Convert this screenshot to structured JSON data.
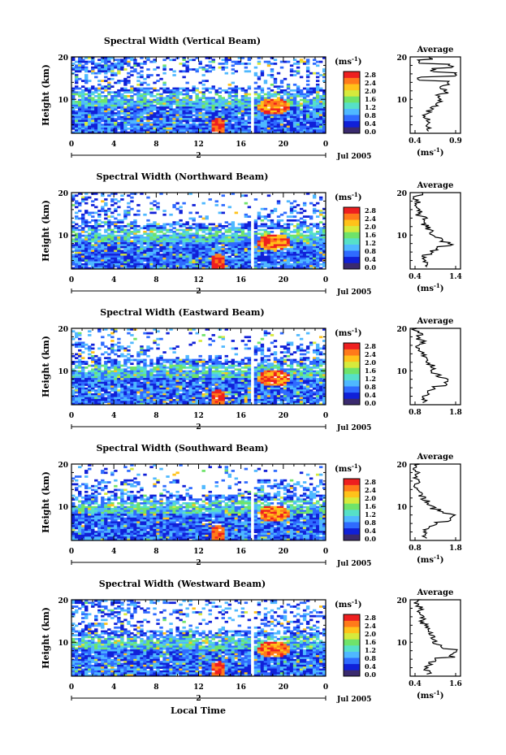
{
  "figure": {
    "date_label": "Jul 2005",
    "day_label": "2",
    "x_label": "Local Time",
    "y_label": "Height (km)",
    "unit_label": "(ms",
    "unit_exp": "-1",
    "average_title": "Average",
    "x_ticks": [
      "0",
      "4",
      "8",
      "12",
      "16",
      "20",
      "0"
    ],
    "y_ticks": [
      "10",
      "20"
    ],
    "colorbar_ticks": [
      "0.0",
      "0.4",
      "0.8",
      "1.2",
      "1.6",
      "2.0",
      "2.4",
      "2.8"
    ],
    "colors": [
      "#3a2a6e",
      "#1020d8",
      "#2f6bff",
      "#4fb8ff",
      "#56e0c8",
      "#6fe36a",
      "#d6ea3c",
      "#ffc21a",
      "#ff7a1a",
      "#ee1f1f"
    ]
  },
  "chart_data": [
    {
      "type": "heatmap",
      "title": "Spectral Width (Vertical Beam)",
      "xlabel": "",
      "ylabel": "Height (km)",
      "x_range_hours": [
        0,
        24
      ],
      "y_range_km": [
        2,
        20
      ],
      "gap_hours": 17.0,
      "colorbar": {
        "label": "(ms^-1)",
        "range": [
          0.0,
          2.8
        ],
        "ticks": [
          0.0,
          0.4,
          0.8,
          1.2,
          1.6,
          2.0,
          2.4,
          2.8
        ]
      },
      "average_profile": {
        "title": "Average",
        "xlabel": "(ms^-1)",
        "xlim": [
          0.4,
          0.9
        ],
        "xticks": [
          "0.4",
          "0.9"
        ],
        "height_km": [
          3,
          4,
          5,
          6,
          7,
          8,
          9,
          10,
          11,
          12,
          13,
          14,
          15,
          16,
          17,
          18,
          19,
          20
        ],
        "width_ms": [
          0.58,
          0.55,
          0.57,
          0.54,
          0.58,
          0.62,
          0.66,
          0.7,
          0.68,
          0.75,
          0.7,
          0.78,
          0.5,
          0.85,
          0.62,
          0.8,
          0.5,
          0.6
        ]
      }
    },
    {
      "type": "heatmap",
      "title": "Spectral Width (Northward Beam)",
      "xlabel": "",
      "ylabel": "Height (km)",
      "x_range_hours": [
        0,
        24
      ],
      "y_range_km": [
        2,
        20
      ],
      "gap_hours": 17.0,
      "colorbar": {
        "label": "(ms^-1)",
        "range": [
          0.0,
          2.8
        ],
        "ticks": [
          0.0,
          0.4,
          0.8,
          1.2,
          1.6,
          2.0,
          2.4,
          2.8
        ]
      },
      "average_profile": {
        "title": "Average",
        "xlabel": "(ms^-1)",
        "xlim": [
          0.4,
          1.4
        ],
        "xticks": [
          "0.4",
          "1.4"
        ],
        "height_km": [
          3,
          4,
          5,
          6,
          7,
          8,
          9,
          10,
          11,
          12,
          13,
          14,
          15,
          16,
          17,
          18,
          19,
          20
        ],
        "width_ms": [
          0.7,
          0.72,
          0.68,
          0.8,
          0.95,
          1.2,
          1.0,
          0.85,
          0.8,
          0.75,
          0.65,
          0.7,
          0.55,
          0.6,
          0.5,
          0.55,
          0.5,
          0.6
        ]
      }
    },
    {
      "type": "heatmap",
      "title": "Spectral Width (Eastward Beam)",
      "xlabel": "",
      "ylabel": "Height (km)",
      "x_range_hours": [
        0,
        24
      ],
      "y_range_km": [
        2,
        20
      ],
      "gap_hours": 17.0,
      "colorbar": {
        "label": "(ms^-1)",
        "range": [
          0.0,
          2.8
        ],
        "ticks": [
          0.0,
          0.4,
          0.8,
          1.2,
          1.6,
          2.0,
          2.4,
          2.8
        ]
      },
      "average_profile": {
        "title": "Average",
        "xlabel": "",
        "xlim": [
          0.8,
          1.8
        ],
        "xticks": [
          "0.8",
          "1.8"
        ],
        "height_km": [
          3,
          4,
          5,
          6,
          7,
          8,
          9,
          10,
          11,
          12,
          13,
          14,
          15,
          16,
          17,
          18,
          19,
          20
        ],
        "width_ms": [
          1.1,
          1.08,
          1.15,
          1.25,
          1.5,
          1.55,
          1.35,
          1.2,
          1.25,
          1.15,
          1.1,
          1.05,
          1.0,
          0.95,
          1.05,
          0.95,
          1.0,
          0.9
        ]
      }
    },
    {
      "type": "heatmap",
      "title": "Spectral Width (Southward Beam)",
      "xlabel": "",
      "ylabel": "Height (km)",
      "x_range_hours": [
        0,
        24
      ],
      "y_range_km": [
        2,
        20
      ],
      "gap_hours": 17.0,
      "colorbar": {
        "label": "(ms^-1)",
        "range": [
          0.0,
          2.8
        ],
        "ticks": [
          0.0,
          0.4,
          0.8,
          1.2,
          1.6,
          2.0,
          2.4,
          2.8
        ]
      },
      "average_profile": {
        "title": "Average",
        "xlabel": "(ms^-1)",
        "xlim": [
          0.8,
          1.8
        ],
        "xticks": [
          "0.8",
          "1.8"
        ],
        "height_km": [
          3,
          4,
          5,
          6,
          7,
          8,
          9,
          10,
          11,
          12,
          13,
          14,
          15,
          16,
          17,
          18,
          19,
          20
        ],
        "width_ms": [
          1.1,
          1.08,
          1.12,
          1.3,
          1.6,
          1.65,
          1.4,
          1.25,
          1.15,
          1.05,
          1.0,
          0.95,
          0.9,
          1.0,
          0.92,
          0.95,
          0.9,
          0.95
        ]
      }
    },
    {
      "type": "heatmap",
      "title": "Spectral Width (Westward Beam)",
      "xlabel": "Local Time",
      "ylabel": "Height (km)",
      "x_range_hours": [
        0,
        24
      ],
      "y_range_km": [
        2,
        20
      ],
      "gap_hours": 17.0,
      "colorbar": {
        "label": "(ms^-1)",
        "range": [
          0.0,
          2.8
        ],
        "ticks": [
          0.0,
          0.4,
          0.8,
          1.2,
          1.6,
          2.0,
          2.4,
          2.8
        ]
      },
      "average_profile": {
        "title": "Average",
        "xlabel": "(ms^-1)",
        "xlim": [
          0.4,
          1.6
        ],
        "xticks": [
          "0.4",
          "1.6"
        ],
        "height_km": [
          3,
          4,
          5,
          6,
          7,
          8,
          9,
          10,
          11,
          12,
          13,
          14,
          15,
          16,
          17,
          18,
          19,
          20
        ],
        "width_ms": [
          0.85,
          0.8,
          0.85,
          1.0,
          1.4,
          1.5,
          1.2,
          1.0,
          0.95,
          0.9,
          0.85,
          0.8,
          0.65,
          0.7,
          0.6,
          0.65,
          0.55,
          0.6
        ]
      }
    }
  ]
}
